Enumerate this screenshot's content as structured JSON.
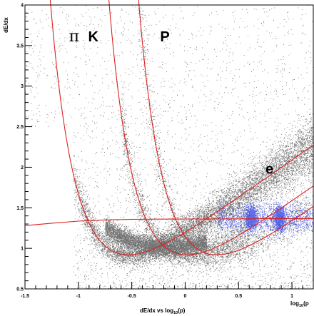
{
  "chart_data": {
    "type": "scatter",
    "title": "",
    "xlabel": "dE/dx vs log",
    "xlabel_sub": "10",
    "xlabel_tail": "(p)",
    "ylabel": "dE/dx",
    "xlim": [
      -1.5,
      1.2
    ],
    "ylim": [
      0.5,
      4
    ],
    "x_axis_title_right": "log",
    "x_axis_title_right_sub": "10",
    "x_axis_title_right_tail": "(p",
    "x_ticks": [
      {
        "value": -1.5,
        "label": "-1.5"
      },
      {
        "value": -1,
        "label": "-1"
      },
      {
        "value": -0.5,
        "label": "-0.5"
      },
      {
        "value": 0,
        "label": "0"
      },
      {
        "value": 0.5,
        "label": "0.5"
      },
      {
        "value": 1,
        "label": "1"
      }
    ],
    "y_ticks": [
      {
        "value": 0.5,
        "label": "0.5"
      },
      {
        "value": 1,
        "label": "1"
      },
      {
        "value": 1.5,
        "label": "1.5"
      },
      {
        "value": 2,
        "label": "2"
      },
      {
        "value": 2.5,
        "label": "2.5"
      },
      {
        "value": 3,
        "label": "3"
      },
      {
        "value": 3.5,
        "label": "3.5"
      },
      {
        "value": 4,
        "label": "4"
      }
    ],
    "annotations": [
      {
        "text": "π",
        "x": -1.04,
        "y": 3.55,
        "style": "pi"
      },
      {
        "text": "K",
        "x": -0.86,
        "y": 3.55,
        "style": "bold"
      },
      {
        "text": "P",
        "x": -0.19,
        "y": 3.55,
        "style": "bold"
      },
      {
        "text": "e",
        "x": 0.79,
        "y": 1.92,
        "style": "bold"
      }
    ],
    "series": [
      {
        "name": "π",
        "color": "#dd2020",
        "mass_log10": -0.855,
        "values": []
      },
      {
        "name": "K",
        "color": "#dd2020",
        "mass_log10": -0.306,
        "values": []
      },
      {
        "name": "P",
        "color": "#dd2020",
        "mass_log10": -0.028,
        "values": []
      },
      {
        "name": "e",
        "color": "#dd2020",
        "values": [
          [
            -1.5,
            1.28
          ],
          [
            -1.25,
            1.31
          ],
          [
            -1.0,
            1.335
          ],
          [
            -0.75,
            1.35
          ],
          [
            -0.5,
            1.357
          ],
          [
            -0.25,
            1.36
          ],
          [
            0.0,
            1.362
          ],
          [
            0.25,
            1.363
          ],
          [
            0.5,
            1.364
          ],
          [
            0.75,
            1.365
          ],
          [
            1.0,
            1.366
          ],
          [
            1.2,
            1.367
          ]
        ]
      }
    ],
    "density_bands": [
      {
        "particle": "π",
        "color": "#000000"
      },
      {
        "particle": "K",
        "color": "#000000"
      },
      {
        "particle": "P",
        "color": "#000000"
      },
      {
        "particle": "e",
        "color": "#1a2ee0"
      }
    ],
    "grid": false,
    "legend": "none"
  }
}
